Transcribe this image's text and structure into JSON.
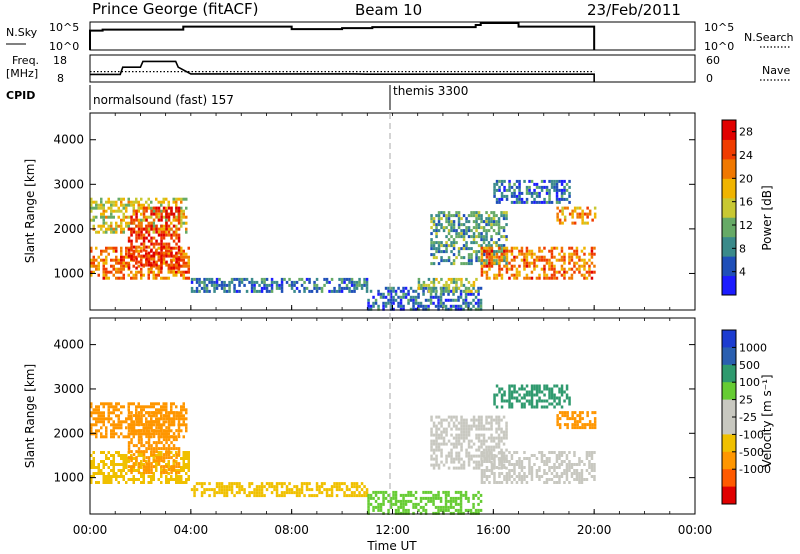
{
  "header": {
    "station": "Prince George (fitACF)",
    "beam": "Beam 10",
    "date": "23/Feb/2011"
  },
  "side_labels": {
    "nsky": "N.Sky",
    "nsky_top": "10^5",
    "nsky_bot": "10^0",
    "nsearch": "N.Search",
    "freq": "Freq.",
    "freq_unit": "[MHz]",
    "freq_top": "18",
    "freq_bot": "8",
    "nave": "Nave",
    "nave_top": "60",
    "nave_bot": "0",
    "cpid": "CPID"
  },
  "cpid_labels": [
    {
      "text": "normalsound (fast) 157",
      "start_hour": 0.0
    },
    {
      "text": "themis 3300",
      "start_hour": 12.0
    }
  ],
  "colors": {
    "power_scale": [
      "#1c1cff",
      "#1f4fb8",
      "#3a8a8a",
      "#66aa66",
      "#c8c832",
      "#f0b400",
      "#f07800",
      "#f03c00",
      "#e00000"
    ],
    "velocity_scale": [
      "#e00000",
      "#ff5a00",
      "#ff9600",
      "#f0c000",
      "#c8c8c0",
      "#c8c8c0",
      "#66cc33",
      "#2f9a6e",
      "#2a5fb0",
      "#1c3cd0"
    ],
    "guide_line": "#aaaaaa"
  },
  "chart_data": [
    {
      "type": "line",
      "panel": "N.Sky / N.Search",
      "x_label": "Time UT",
      "xlim_hours": [
        0,
        24
      ],
      "y_ticks": [
        "10^0",
        "10^5"
      ],
      "series": [
        {
          "name": "N.Sky",
          "x": [
            0.0,
            0.5,
            3.6,
            3.7,
            8.0,
            10.0,
            11.2,
            15.3,
            15.5,
            17.0,
            20.0
          ],
          "y": [
            3.8,
            4.0,
            4.0,
            4.6,
            4.1,
            4.3,
            4.5,
            4.9,
            5.3,
            4.6,
            4.2
          ]
        },
        {
          "name": "N.Search",
          "x": [],
          "y": []
        }
      ]
    },
    {
      "type": "line",
      "panel": "Freq. / Nave",
      "series": [
        {
          "name": "Freq.",
          "unit": "MHz",
          "ylim": [
            8,
            18
          ],
          "x": [
            0.0,
            1.2,
            1.3,
            2.0,
            2.1,
            3.4,
            3.5,
            4.0,
            10.5,
            11.0,
            20.0
          ],
          "y": [
            10.8,
            10.8,
            13.5,
            13.5,
            15.6,
            15.6,
            13.5,
            11.0,
            11.0,
            10.9,
            10.9
          ]
        },
        {
          "name": "Nave",
          "ylim": [
            0,
            60
          ],
          "x": [
            0.0,
            20.0
          ],
          "y": [
            23,
            23
          ]
        }
      ]
    },
    {
      "type": "heatmap",
      "panel": "Power",
      "title": "Power [dB]",
      "xlabel": "",
      "ylabel": "Slant Range [km]",
      "xlim_hours": [
        0,
        24
      ],
      "ylim_km": [
        180,
        4600
      ],
      "x_ticks": [
        "00:00",
        "04:00",
        "08:00",
        "12:00",
        "16:00",
        "20:00",
        "00:00"
      ],
      "y_ticks": [
        1000,
        2000,
        3000,
        4000
      ],
      "colorbar": {
        "label": "Power [dB]",
        "ticks": [
          4,
          8,
          12,
          16,
          20,
          24,
          28
        ],
        "range": [
          0,
          30
        ]
      },
      "regions": [
        {
          "t0": 0.0,
          "t1": 3.9,
          "r0": 900,
          "r1": 1600,
          "val": 22
        },
        {
          "t0": 0.0,
          "t1": 3.8,
          "r0": 1900,
          "r1": 2700,
          "val": 16
        },
        {
          "t0": 1.5,
          "t1": 3.5,
          "r0": 1100,
          "r1": 2500,
          "val": 26
        },
        {
          "t0": 4.0,
          "t1": 11.0,
          "r0": 600,
          "r1": 900,
          "val": 7
        },
        {
          "t0": 11.0,
          "t1": 15.5,
          "r0": 200,
          "r1": 700,
          "val": 6
        },
        {
          "t0": 13.0,
          "t1": 15.3,
          "r0": 600,
          "r1": 900,
          "val": 14
        },
        {
          "t0": 13.5,
          "t1": 16.5,
          "r0": 1200,
          "r1": 2400,
          "val": 10
        },
        {
          "t0": 15.5,
          "t1": 20.0,
          "r0": 900,
          "r1": 1600,
          "val": 22
        },
        {
          "t0": 16.0,
          "t1": 19.0,
          "r0": 2600,
          "r1": 3100,
          "val": 6
        },
        {
          "t0": 18.5,
          "t1": 20.0,
          "r0": 2100,
          "r1": 2500,
          "val": 20
        }
      ]
    },
    {
      "type": "heatmap",
      "panel": "Velocity",
      "title": "Velocity [m s^-1]",
      "xlabel": "Time UT",
      "ylabel": "Slant Range [km]",
      "xlim_hours": [
        0,
        24
      ],
      "ylim_km": [
        180,
        4600
      ],
      "x_ticks": [
        "00:00",
        "04:00",
        "08:00",
        "12:00",
        "16:00",
        "20:00",
        "00:00"
      ],
      "y_ticks": [
        1000,
        2000,
        3000,
        4000
      ],
      "colorbar": {
        "label": "Velocity [m s^-1]",
        "ticks": [
          1000,
          500,
          100,
          25,
          -25,
          -100,
          -500,
          -1000
        ]
      },
      "regions": [
        {
          "t0": 0.0,
          "t1": 3.9,
          "r0": 900,
          "r1": 1600,
          "val": -80
        },
        {
          "t0": 0.0,
          "t1": 3.8,
          "r0": 1900,
          "r1": 2700,
          "val": -150
        },
        {
          "t0": 1.5,
          "t1": 3.5,
          "r0": 1100,
          "r1": 2500,
          "val": -300
        },
        {
          "t0": 4.0,
          "t1": 11.0,
          "r0": 600,
          "r1": 900,
          "val": -60
        },
        {
          "t0": 11.0,
          "t1": 15.5,
          "r0": 200,
          "r1": 700,
          "val": 40
        },
        {
          "t0": 13.5,
          "t1": 16.5,
          "r0": 1200,
          "r1": 2400,
          "val": 0
        },
        {
          "t0": 15.5,
          "t1": 20.0,
          "r0": 900,
          "r1": 1600,
          "val": 0
        },
        {
          "t0": 16.0,
          "t1": 19.0,
          "r0": 2600,
          "r1": 3100,
          "val": 150
        },
        {
          "t0": 18.5,
          "t1": 20.0,
          "r0": 2100,
          "r1": 2500,
          "val": -120
        }
      ]
    }
  ],
  "axes": {
    "x_label": "Time UT",
    "y_label": "Slant Range [km]",
    "power_cb_label": "Power [dB]",
    "velocity_cb_label": "Velocity [m s⁻¹]"
  }
}
